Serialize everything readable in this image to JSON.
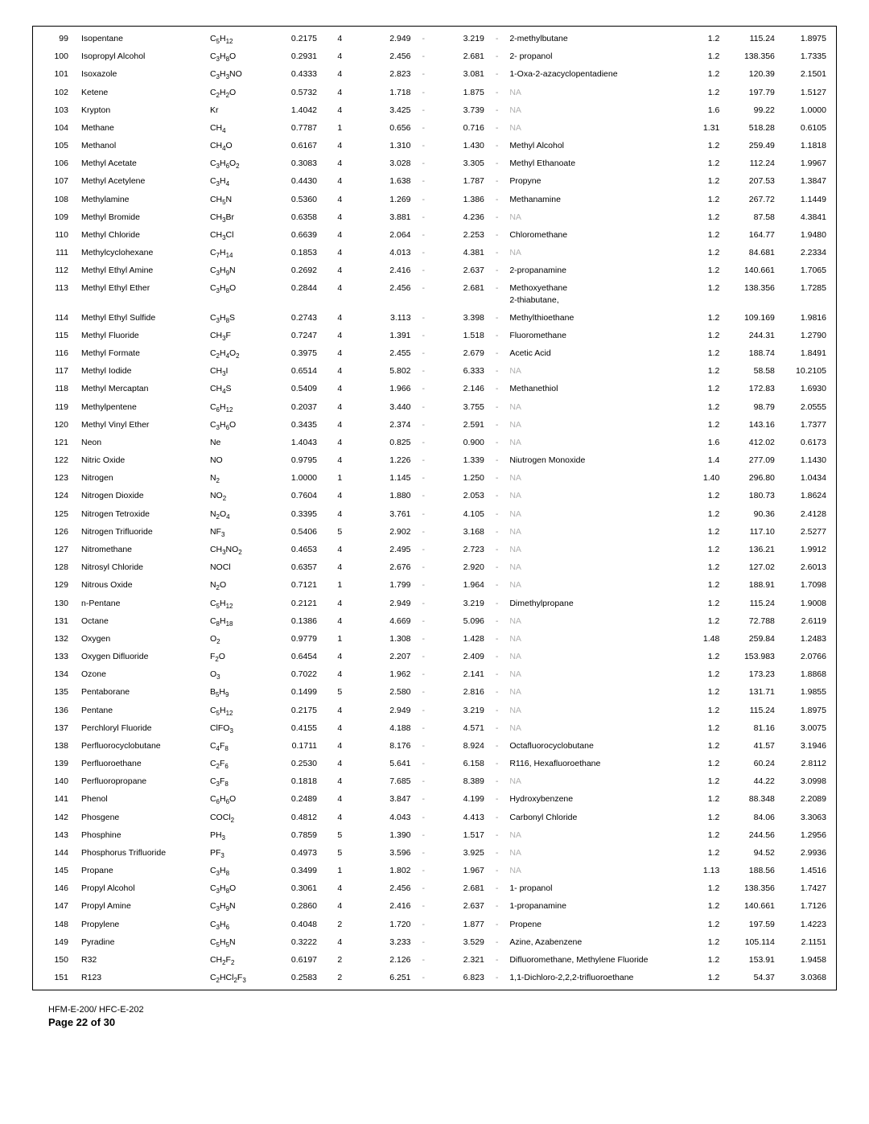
{
  "footer": {
    "doc": "HFM-E-200/ HFC-E-202",
    "page": "Page 22 of 30"
  },
  "dash": "-",
  "na": "NA",
  "rows": [
    {
      "i": 99,
      "name": "Isopentane",
      "formula": "C<sub>5</sub>H<sub>12</sub>",
      "a": "0.2175",
      "b": "4",
      "c": "2.949",
      "d": "3.219",
      "syn": "2-methylbutane",
      "e": "1.2",
      "f": "115.24",
      "g": "1.8975"
    },
    {
      "i": 100,
      "name": "Isopropyl Alcohol",
      "formula": "C<sub>3</sub>H<sub>8</sub>O",
      "a": "0.2931",
      "b": "4",
      "c": "2.456",
      "d": "2.681",
      "syn": "2- propanol",
      "e": "1.2",
      "f": "138.356",
      "g": "1.7335"
    },
    {
      "i": 101,
      "name": "Isoxazole",
      "formula": "C<sub>3</sub>H<sub>3</sub>NO",
      "a": "0.4333",
      "b": "4",
      "c": "2.823",
      "d": "3.081",
      "syn": "1-Oxa-2-azacyclopentadiene",
      "e": "1.2",
      "f": "120.39",
      "g": "2.1501"
    },
    {
      "i": 102,
      "name": "Ketene",
      "formula": "C<sub>2</sub>H<sub>2</sub>O",
      "a": "0.5732",
      "b": "4",
      "c": "1.718",
      "d": "1.875",
      "syn": null,
      "e": "1.2",
      "f": "197.79",
      "g": "1.5127"
    },
    {
      "i": 103,
      "name": "Krypton",
      "formula": "Kr",
      "a": "1.4042",
      "b": "4",
      "c": "3.425",
      "d": "3.739",
      "syn": null,
      "e": "1.6",
      "f": "99.22",
      "g": "1.0000"
    },
    {
      "i": 104,
      "name": "Methane",
      "formula": "CH<sub>4</sub>",
      "a": "0.7787",
      "b": "1",
      "c": "0.656",
      "d": "0.716",
      "syn": null,
      "e": "1.31",
      "f": "518.28",
      "g": "0.6105"
    },
    {
      "i": 105,
      "name": "Methanol",
      "formula": "CH<sub>4</sub>O",
      "a": "0.6167",
      "b": "4",
      "c": "1.310",
      "d": "1.430",
      "syn": "Methyl Alcohol",
      "e": "1.2",
      "f": "259.49",
      "g": "1.1818"
    },
    {
      "i": 106,
      "name": "Methyl Acetate",
      "formula": "C<sub>3</sub>H<sub>6</sub>O<sub>2</sub>",
      "a": "0.3083",
      "b": "4",
      "c": "3.028",
      "d": "3.305",
      "syn": "Methyl Ethanoate",
      "e": "1.2",
      "f": "112.24",
      "g": "1.9967"
    },
    {
      "i": 107,
      "name": "Methyl Acetylene",
      "formula": "C<sub>3</sub>H<sub>4</sub>",
      "a": "0.4430",
      "b": "4",
      "c": "1.638",
      "d": "1.787",
      "syn": "Propyne",
      "e": "1.2",
      "f": "207.53",
      "g": "1.3847"
    },
    {
      "i": 108,
      "name": "Methylamine",
      "formula": "CH<sub>5</sub>N",
      "a": "0.5360",
      "b": "4",
      "c": "1.269",
      "d": "1.386",
      "syn": "Methanamine",
      "e": "1.2",
      "f": "267.72",
      "g": "1.1449"
    },
    {
      "i": 109,
      "name": "Methyl Bromide",
      "formula": "CH<sub>3</sub>Br",
      "a": "0.6358",
      "b": "4",
      "c": "3.881",
      "d": "4.236",
      "syn": null,
      "e": "1.2",
      "f": "87.58",
      "g": "4.3841"
    },
    {
      "i": 110,
      "name": "Methyl Chloride",
      "formula": "CH<sub>3</sub>Cl",
      "a": "0.6639",
      "b": "4",
      "c": "2.064",
      "d": "2.253",
      "syn": "Chloromethane",
      "e": "1.2",
      "f": "164.77",
      "g": "1.9480"
    },
    {
      "i": 111,
      "name": "Methylcyclohexane",
      "formula": "C<sub>7</sub>H<sub>14</sub>",
      "a": "0.1853",
      "b": "4",
      "c": "4.013",
      "d": "4.381",
      "syn": null,
      "e": "1.2",
      "f": "84.681",
      "g": "2.2334"
    },
    {
      "i": 112,
      "name": "Methyl Ethyl Amine",
      "formula": "C<sub>3</sub>H<sub>9</sub>N",
      "a": "0.2692",
      "b": "4",
      "c": "2.416",
      "d": "2.637",
      "syn": "2-propanamine",
      "e": "1.2",
      "f": "140.661",
      "g": "1.7065"
    },
    {
      "i": 113,
      "name": "Methyl Ethyl Ether",
      "formula": "C<sub>3</sub>H<sub>8</sub>O",
      "a": "0.2844",
      "b": "4",
      "c": "2.456",
      "d": "2.681",
      "syn": "Methoxyethane<br>2-thiabutane,",
      "e": "1.2",
      "f": "138.356",
      "g": "1.7285"
    },
    {
      "i": 114,
      "name": "Methyl Ethyl Sulfide",
      "formula": "C<sub>3</sub>H<sub>8</sub>S",
      "a": "0.2743",
      "b": "4",
      "c": "3.113",
      "d": "3.398",
      "syn": "Methylthioethane",
      "e": "1.2",
      "f": "109.169",
      "g": "1.9816"
    },
    {
      "i": 115,
      "name": "Methyl Fluoride",
      "formula": "CH<sub>3</sub>F",
      "a": "0.7247",
      "b": "4",
      "c": "1.391",
      "d": "1.518",
      "syn": "Fluoromethane",
      "e": "1.2",
      "f": "244.31",
      "g": "1.2790"
    },
    {
      "i": 116,
      "name": "Methyl Formate",
      "formula": "C<sub>2</sub>H<sub>4</sub>O<sub>2</sub>",
      "a": "0.3975",
      "b": "4",
      "c": "2.455",
      "d": "2.679",
      "syn": "Acetic Acid",
      "e": "1.2",
      "f": "188.74",
      "g": "1.8491"
    },
    {
      "i": 117,
      "name": "Methyl Iodide",
      "formula": "CH<sub>3</sub>I",
      "a": "0.6514",
      "b": "4",
      "c": "5.802",
      "d": "6.333",
      "syn": null,
      "e": "1.2",
      "f": "58.58",
      "g": "10.2105"
    },
    {
      "i": 118,
      "name": "Methyl Mercaptan",
      "formula": "CH<sub>4</sub>S",
      "a": "0.5409",
      "b": "4",
      "c": "1.966",
      "d": "2.146",
      "syn": "Methanethiol",
      "e": "1.2",
      "f": "172.83",
      "g": "1.6930"
    },
    {
      "i": 119,
      "name": "Methylpentene",
      "formula": "C<sub>6</sub>H<sub>12</sub>",
      "a": "0.2037",
      "b": "4",
      "c": "3.440",
      "d": "3.755",
      "syn": null,
      "e": "1.2",
      "f": "98.79",
      "g": "2.0555"
    },
    {
      "i": 120,
      "name": "Methyl Vinyl Ether",
      "formula": "C<sub>3</sub>H<sub>6</sub>O",
      "a": "0.3435",
      "b": "4",
      "c": "2.374",
      "d": "2.591",
      "syn": null,
      "e": "1.2",
      "f": "143.16",
      "g": "1.7377"
    },
    {
      "i": 121,
      "name": "Neon",
      "formula": "Ne",
      "a": "1.4043",
      "b": "4",
      "c": "0.825",
      "d": "0.900",
      "syn": null,
      "e": "1.6",
      "f": "412.02",
      "g": "0.6173"
    },
    {
      "i": 122,
      "name": "Nitric Oxide",
      "formula": "NO",
      "a": "0.9795",
      "b": "4",
      "c": "1.226",
      "d": "1.339",
      "syn": "Niutrogen Monoxide",
      "e": "1.4",
      "f": "277.09",
      "g": "1.1430"
    },
    {
      "i": 123,
      "name": "Nitrogen",
      "formula": "N<sub>2</sub>",
      "a": "1.0000",
      "b": "1",
      "c": "1.145",
      "d": "1.250",
      "syn": null,
      "e": "1.40",
      "f": "296.80",
      "g": "1.0434"
    },
    {
      "i": 124,
      "name": "Nitrogen Dioxide",
      "formula": "NO<sub>2</sub>",
      "a": "0.7604",
      "b": "4",
      "c": "1.880",
      "d": "2.053",
      "syn": null,
      "e": "1.2",
      "f": "180.73",
      "g": "1.8624"
    },
    {
      "i": 125,
      "name": "Nitrogen Tetroxide",
      "formula": "N<sub>2</sub>O<sub>4</sub>",
      "a": "0.3395",
      "b": "4",
      "c": "3.761",
      "d": "4.105",
      "syn": null,
      "e": "1.2",
      "f": "90.36",
      "g": "2.4128"
    },
    {
      "i": 126,
      "name": "Nitrogen Trifluoride",
      "formula": "NF<sub>3</sub>",
      "a": "0.5406",
      "b": "5",
      "c": "2.902",
      "d": "3.168",
      "syn": null,
      "e": "1.2",
      "f": "117.10",
      "g": "2.5277"
    },
    {
      "i": 127,
      "name": "Nitromethane",
      "formula": "CH<sub>3</sub>NO<sub>2</sub>",
      "a": "0.4653",
      "b": "4",
      "c": "2.495",
      "d": "2.723",
      "syn": null,
      "e": "1.2",
      "f": "136.21",
      "g": "1.9912"
    },
    {
      "i": 128,
      "name": "Nitrosyl Chloride",
      "formula": "NOCl",
      "a": "0.6357",
      "b": "4",
      "c": "2.676",
      "d": "2.920",
      "syn": null,
      "e": "1.2",
      "f": "127.02",
      "g": "2.6013"
    },
    {
      "i": 129,
      "name": "Nitrous Oxide",
      "formula": "N<sub>2</sub>O",
      "a": "0.7121",
      "b": "1",
      "c": "1.799",
      "d": "1.964",
      "syn": null,
      "e": "1.2",
      "f": "188.91",
      "g": "1.7098"
    },
    {
      "i": 130,
      "name": "n-Pentane",
      "formula": "C<sub>5</sub>H<sub>12</sub>",
      "a": "0.2121",
      "b": "4",
      "c": "2.949",
      "d": "3.219",
      "syn": "Dimethylpropane",
      "e": "1.2",
      "f": "115.24",
      "g": "1.9008"
    },
    {
      "i": 131,
      "name": "Octane",
      "formula": "C<sub>8</sub>H<sub>18</sub>",
      "a": "0.1386",
      "b": "4",
      "c": "4.669",
      "d": "5.096",
      "syn": null,
      "e": "1.2",
      "f": "72.788",
      "g": "2.6119"
    },
    {
      "i": 132,
      "name": "Oxygen",
      "formula": "O<sub>2</sub>",
      "a": "0.9779",
      "b": "1",
      "c": "1.308",
      "d": "1.428",
      "syn": null,
      "e": "1.48",
      "f": "259.84",
      "g": "1.2483"
    },
    {
      "i": 133,
      "name": "Oxygen Difluoride",
      "formula": "F<sub>2</sub>O",
      "a": "0.6454",
      "b": "4",
      "c": "2.207",
      "d": "2.409",
      "syn": null,
      "e": "1.2",
      "f": "153.983",
      "g": "2.0766"
    },
    {
      "i": 134,
      "name": "Ozone",
      "formula": "O<sub>3</sub>",
      "a": "0.7022",
      "b": "4",
      "c": "1.962",
      "d": "2.141",
      "syn": null,
      "e": "1.2",
      "f": "173.23",
      "g": "1.8868"
    },
    {
      "i": 135,
      "name": "Pentaborane",
      "formula": "B<sub>5</sub>H<sub>9</sub>",
      "a": "0.1499",
      "b": "5",
      "c": "2.580",
      "d": "2.816",
      "syn": null,
      "e": "1.2",
      "f": "131.71",
      "g": "1.9855"
    },
    {
      "i": 136,
      "name": "Pentane",
      "formula": "C<sub>5</sub>H<sub>12</sub>",
      "a": "0.2175",
      "b": "4",
      "c": "2.949",
      "d": "3.219",
      "syn": null,
      "e": "1.2",
      "f": "115.24",
      "g": "1.8975"
    },
    {
      "i": 137,
      "name": "Perchloryl Fluoride",
      "formula": "ClFO<sub>3</sub>",
      "a": "0.4155",
      "b": "4",
      "c": "4.188",
      "d": "4.571",
      "syn": null,
      "e": "1.2",
      "f": "81.16",
      "g": "3.0075"
    },
    {
      "i": 138,
      "name": "Perfluorocyclobutane",
      "formula": "C<sub>4</sub>F<sub>8</sub>",
      "a": "0.1711",
      "b": "4",
      "c": "8.176",
      "d": "8.924",
      "syn": "Octafluorocyclobutane",
      "e": "1.2",
      "f": "41.57",
      "g": "3.1946"
    },
    {
      "i": 139,
      "name": "Perfluoroethane",
      "formula": "C<sub>2</sub>F<sub>6</sub>",
      "a": "0.2530",
      "b": "4",
      "c": "5.641",
      "d": "6.158",
      "syn": "R116, Hexafluoroethane",
      "e": "1.2",
      "f": "60.24",
      "g": "2.8112"
    },
    {
      "i": 140,
      "name": "Perfluoropropane",
      "formula": "C<sub>3</sub>F<sub>8</sub>",
      "a": "0.1818",
      "b": "4",
      "c": "7.685",
      "d": "8.389",
      "syn": null,
      "e": "1.2",
      "f": "44.22",
      "g": "3.0998"
    },
    {
      "i": 141,
      "name": "Phenol",
      "formula": "C<sub>6</sub>H<sub>6</sub>O",
      "a": "0.2489",
      "b": "4",
      "c": "3.847",
      "d": "4.199",
      "syn": "Hydroxybenzene",
      "e": "1.2",
      "f": "88.348",
      "g": "2.2089"
    },
    {
      "i": 142,
      "name": "Phosgene",
      "formula": "COCl<sub>2</sub>",
      "a": "0.4812",
      "b": "4",
      "c": "4.043",
      "d": "4.413",
      "syn": "Carbonyl Chloride",
      "e": "1.2",
      "f": "84.06",
      "g": "3.3063"
    },
    {
      "i": 143,
      "name": "Phosphine",
      "formula": "PH<sub>3</sub>",
      "a": "0.7859",
      "b": "5",
      "c": "1.390",
      "d": "1.517",
      "syn": null,
      "e": "1.2",
      "f": "244.56",
      "g": "1.2956"
    },
    {
      "i": 144,
      "name": "Phosphorus Trifluoride",
      "formula": "PF<sub>3</sub>",
      "a": "0.4973",
      "b": "5",
      "c": "3.596",
      "d": "3.925",
      "syn": null,
      "e": "1.2",
      "f": "94.52",
      "g": "2.9936"
    },
    {
      "i": 145,
      "name": "Propane",
      "formula": "C<sub>3</sub>H<sub>8</sub>",
      "a": "0.3499",
      "b": "1",
      "c": "1.802",
      "d": "1.967",
      "syn": null,
      "e": "1.13",
      "f": "188.56",
      "g": "1.4516"
    },
    {
      "i": 146,
      "name": "Propyl Alcohol",
      "formula": "C<sub>3</sub>H<sub>8</sub>O",
      "a": "0.3061",
      "b": "4",
      "c": "2.456",
      "d": "2.681",
      "syn": "1- propanol",
      "e": "1.2",
      "f": "138.356",
      "g": "1.7427"
    },
    {
      "i": 147,
      "name": "Propyl Amine",
      "formula": "C<sub>3</sub>H<sub>9</sub>N",
      "a": "0.2860",
      "b": "4",
      "c": "2.416",
      "d": "2.637",
      "syn": "1-propanamine",
      "e": "1.2",
      "f": "140.661",
      "g": "1.7126"
    },
    {
      "i": 148,
      "name": "Propylene",
      "formula": "C<sub>3</sub>H<sub>6</sub>",
      "a": "0.4048",
      "b": "2",
      "c": "1.720",
      "d": "1.877",
      "syn": "Propene",
      "e": "1.2",
      "f": "197.59",
      "g": "1.4223"
    },
    {
      "i": 149,
      "name": "Pyradine",
      "formula": "C<sub>5</sub>H<sub>5</sub>N",
      "a": "0.3222",
      "b": "4",
      "c": "3.233",
      "d": "3.529",
      "syn": "Azine, Azabenzene",
      "e": "1.2",
      "f": "105.114",
      "g": "2.1151"
    },
    {
      "i": 150,
      "name": "R32",
      "formula": "CH<sub>2</sub>F<sub>2</sub>",
      "a": "0.6197",
      "b": "2",
      "c": "2.126",
      "d": "2.321",
      "syn": "Difluoromethane, Methylene Fluoride",
      "e": "1.2",
      "f": "153.91",
      "g": "1.9458"
    },
    {
      "i": 151,
      "name": "R123",
      "formula": "C<sub>2</sub>HCl<sub>2</sub>F<sub>3</sub>",
      "a": "0.2583",
      "b": "2",
      "c": "6.251",
      "d": "6.823",
      "syn": "1,1-Dichloro-2,2,2-trifluoroethane",
      "e": "1.2",
      "f": "54.37",
      "g": "3.0368"
    }
  ]
}
